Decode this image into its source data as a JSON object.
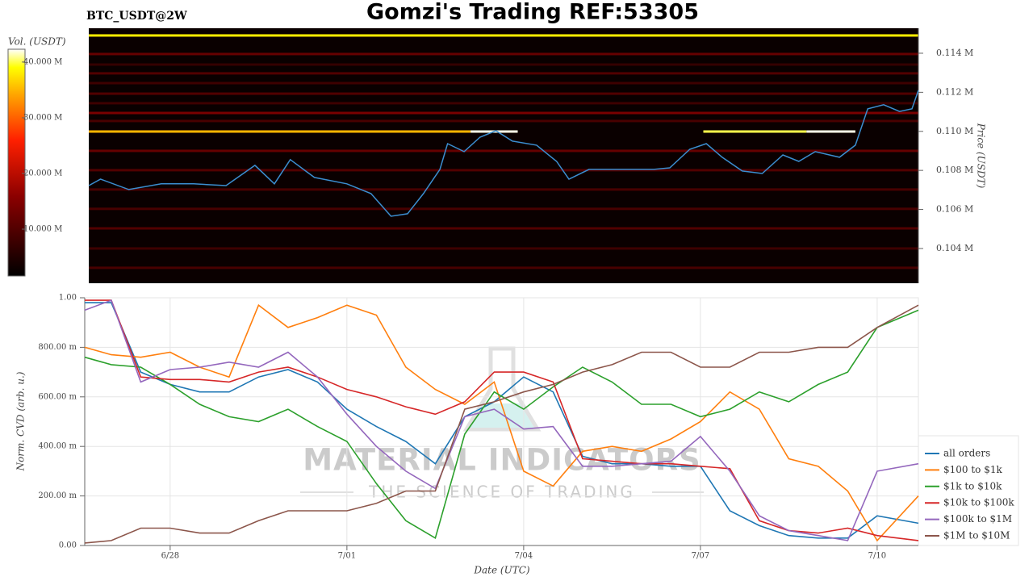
{
  "chart_data": [
    {
      "type": "heatmap",
      "title": "Gomzi's Trading REF:53305",
      "subtitle": "BTC_USDT@2W",
      "ylabel": "Price (USDT)",
      "xlim": [
        -1.38,
        12.7
      ],
      "ylim": [
        0.10222,
        0.11528
      ],
      "yticks": [
        {
          "value": 0.104,
          "label": "0.104 M"
        },
        {
          "value": 0.106,
          "label": "0.106 M"
        },
        {
          "value": 0.108,
          "label": "0.108 M"
        },
        {
          "value": 0.11,
          "label": "0.110 M"
        },
        {
          "value": 0.112,
          "label": "0.112 M"
        },
        {
          "value": 0.114,
          "label": "0.114 M"
        }
      ],
      "colorbar": {
        "label": "Vol. (USDT)",
        "lim": [
          1.6,
          42.3
        ],
        "ticks": [
          {
            "value": 10,
            "label": "10.000 M"
          },
          {
            "value": 20,
            "label": "20.000 M"
          },
          {
            "value": 30,
            "label": "30.000 M"
          },
          {
            "value": 40,
            "label": "40.000 M"
          }
        ]
      },
      "bands": {
        "price": [
          0.11491,
          0.11396,
          0.11342,
          0.11297,
          0.11247,
          0.11193,
          0.11144,
          0.11094,
          0.11053,
          0.10999,
          0.10999,
          0.10999,
          0.10999,
          0.109,
          0.10801,
          0.10702,
          0.10603,
          0.10503,
          0.104,
          0.10301
        ],
        "volume": [
          38,
          12,
          7,
          10,
          8,
          10,
          8,
          14,
          9,
          35,
          42,
          40,
          42,
          12,
          10,
          9,
          9,
          10,
          8,
          9
        ],
        "start": [
          -1.38,
          -1.38,
          -1.38,
          -1.38,
          -1.38,
          -1.38,
          -1.38,
          -1.38,
          -1.38,
          -1.38,
          5.1,
          9.05,
          10.8,
          -1.38,
          -1.38,
          -1.38,
          -1.38,
          -1.38,
          -1.38,
          -1.38
        ],
        "end": [
          12.7,
          12.7,
          12.7,
          12.7,
          12.7,
          12.7,
          12.7,
          12.7,
          12.7,
          5.1,
          5.9,
          10.8,
          11.63,
          12.7,
          12.7,
          12.7,
          12.7,
          12.7,
          12.7,
          12.7
        ]
      },
      "series": [
        {
          "color": "#3b8ed0",
          "x": [
            -1.38,
            -1.18,
            -0.7,
            -0.15,
            0.4,
            0.95,
            1.44,
            1.77,
            2.04,
            2.45,
            3.0,
            3.41,
            3.75,
            4.03,
            4.3,
            4.58,
            4.71,
            4.99,
            5.26,
            5.53,
            5.81,
            6.22,
            6.56,
            6.77,
            7.11,
            7.66,
            8.21,
            8.48,
            8.82,
            9.1,
            9.37,
            9.71,
            10.05,
            10.4,
            10.67,
            10.95,
            11.36,
            11.63,
            11.84,
            12.11,
            12.38,
            12.59,
            12.7
          ],
          "values": [
            0.10722,
            0.10755,
            0.10702,
            0.10731,
            0.10731,
            0.10722,
            0.10826,
            0.10731,
            0.10855,
            0.10764,
            0.10731,
            0.10681,
            0.10565,
            0.10578,
            0.10681,
            0.10805,
            0.10937,
            0.10896,
            0.1097,
            0.11003,
            0.1095,
            0.10929,
            0.10846,
            0.10755,
            0.10805,
            0.10805,
            0.10805,
            0.10813,
            0.10908,
            0.10937,
            0.10867,
            0.10797,
            0.10784,
            0.10879,
            0.10846,
            0.10896,
            0.10867,
            0.10929,
            0.11115,
            0.11136,
            0.11102,
            0.11115,
            0.1121
          ]
        }
      ]
    },
    {
      "type": "line",
      "xlabel": "Date (UTC)",
      "ylabel": "Norm. CVD (arb. u.)",
      "watermark": "MATERIAL INDICATORS",
      "watermark_tagline": "THE SCIENCE OF TRADING",
      "xlim": [
        -1.45,
        12.7
      ],
      "ylim": [
        0,
        1
      ],
      "xticks": [
        {
          "value": 0,
          "label": "6/28"
        },
        {
          "value": 3,
          "label": "7/01"
        },
        {
          "value": 6,
          "label": "7/04"
        },
        {
          "value": 9,
          "label": "7/07"
        },
        {
          "value": 12,
          "label": "7/10"
        }
      ],
      "yticks": [
        {
          "value": 0,
          "label": "0.00"
        },
        {
          "value": 0.2,
          "label": "200.00 m"
        },
        {
          "value": 0.4,
          "label": "400.00 m"
        },
        {
          "value": 0.6,
          "label": "600.00 m"
        },
        {
          "value": 0.8,
          "label": "800.00 m"
        },
        {
          "value": 1,
          "label": "1.00"
        }
      ],
      "grid": true,
      "legend": "lower right",
      "x": [
        -1.45,
        -1,
        -0.5,
        0,
        0.5,
        1,
        1.5,
        2,
        2.5,
        3,
        3.5,
        4,
        4.5,
        5,
        5.5,
        6,
        6.5,
        7,
        7.5,
        8,
        8.5,
        9,
        9.5,
        10,
        10.5,
        11,
        11.5,
        12,
        12.7
      ],
      "series": [
        {
          "name": "all orders",
          "color": "#1f77b4",
          "values": [
            0.98,
            0.98,
            0.7,
            0.65,
            0.62,
            0.62,
            0.68,
            0.71,
            0.66,
            0.55,
            0.48,
            0.42,
            0.33,
            0.52,
            0.58,
            0.68,
            0.62,
            0.36,
            0.33,
            0.33,
            0.32,
            0.32,
            0.14,
            0.08,
            0.04,
            0.03,
            0.03,
            0.12,
            0.09
          ]
        },
        {
          "name": "$100 to $1k",
          "color": "#ff7f0e",
          "values": [
            0.8,
            0.77,
            0.76,
            0.78,
            0.72,
            0.68,
            0.97,
            0.88,
            0.92,
            0.97,
            0.93,
            0.72,
            0.63,
            0.57,
            0.66,
            0.3,
            0.24,
            0.38,
            0.4,
            0.38,
            0.43,
            0.5,
            0.62,
            0.55,
            0.35,
            0.32,
            0.22,
            0.02,
            0.2
          ]
        },
        {
          "name": "$1k to $10k",
          "color": "#2ca02c",
          "values": [
            0.76,
            0.73,
            0.72,
            0.65,
            0.57,
            0.52,
            0.5,
            0.55,
            0.48,
            0.42,
            0.25,
            0.1,
            0.03,
            0.45,
            0.62,
            0.55,
            0.64,
            0.72,
            0.66,
            0.57,
            0.57,
            0.52,
            0.55,
            0.62,
            0.58,
            0.65,
            0.7,
            0.88,
            0.95
          ]
        },
        {
          "name": "$10k to $100k",
          "color": "#d62728",
          "values": [
            0.99,
            0.99,
            0.68,
            0.67,
            0.67,
            0.66,
            0.7,
            0.72,
            0.68,
            0.63,
            0.6,
            0.56,
            0.53,
            0.58,
            0.7,
            0.7,
            0.66,
            0.35,
            0.34,
            0.33,
            0.33,
            0.32,
            0.31,
            0.1,
            0.06,
            0.05,
            0.07,
            0.04,
            0.02
          ]
        },
        {
          "name": "$100k to $1M",
          "color": "#9467bd",
          "values": [
            0.95,
            0.99,
            0.66,
            0.71,
            0.72,
            0.74,
            0.72,
            0.78,
            0.68,
            0.53,
            0.4,
            0.3,
            0.23,
            0.52,
            0.55,
            0.47,
            0.48,
            0.32,
            0.32,
            0.33,
            0.34,
            0.44,
            0.3,
            0.12,
            0.06,
            0.04,
            0.02,
            0.3,
            0.33
          ]
        },
        {
          "name": "$1M to $10M",
          "color": "#8c564b",
          "values": [
            0.01,
            0.02,
            0.07,
            0.07,
            0.05,
            0.05,
            0.1,
            0.14,
            0.14,
            0.14,
            0.17,
            0.22,
            0.22,
            0.55,
            0.58,
            0.62,
            0.65,
            0.7,
            0.73,
            0.78,
            0.78,
            0.72,
            0.72,
            0.78,
            0.78,
            0.8,
            0.8,
            0.88,
            0.97
          ]
        }
      ]
    }
  ]
}
